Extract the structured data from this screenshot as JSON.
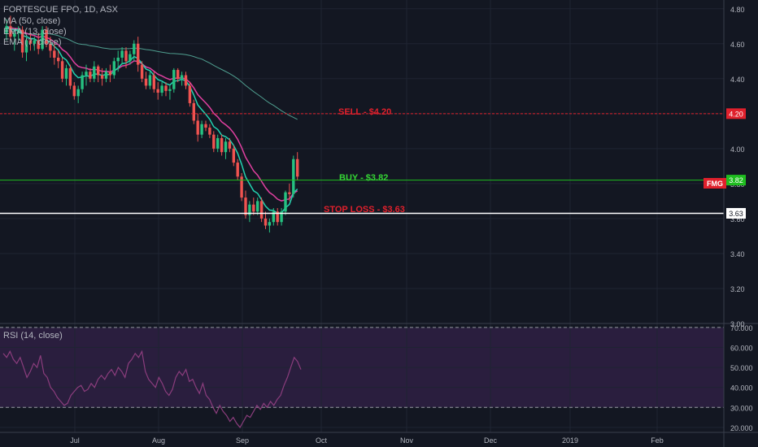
{
  "symbol": {
    "title": "FORTESCUE FPO, 1D, ASX",
    "ticker_badge": "FMG"
  },
  "indicators": {
    "ma50": "MA (50, close)",
    "ema13": "EMA (13, close)",
    "ema7": "EMA (7, close)",
    "rsi": "RSI (14, close)"
  },
  "annotations": {
    "sell": "SELL - $4.20",
    "buy": "BUY - $3.82",
    "stop": "STOP LOSS - $3.63"
  },
  "colors": {
    "background": "#131722",
    "up": "#26c281",
    "down": "#ef5350",
    "sell_line": "#e0202c",
    "buy_line": "#1fbd1f",
    "buy_text": "#35d435",
    "stop_line": "#ffffff",
    "ma50": "#4f9e8f",
    "ema13": "#e040a0",
    "ema7": "#22d3b0",
    "rsi_line": "#8b3d7d",
    "rsi_band": "#2a1e3e"
  },
  "chart_data": [
    {
      "type": "candlestick",
      "title": "FORTESCUE FPO, 1D, ASX",
      "x_ticks": [
        "Jul",
        "Aug",
        "Sep",
        "Oct",
        "Nov",
        "Dec",
        "2019",
        "Feb"
      ],
      "y_ticks": [
        "3.00",
        "3.20",
        "3.40",
        "3.60",
        "3.80",
        "4.00",
        "4.20",
        "4.40",
        "4.60",
        "4.80"
      ],
      "ylim": [
        3.0,
        4.85
      ],
      "levels": [
        {
          "name": "sell",
          "price": 4.2,
          "label": "4.20"
        },
        {
          "name": "buy",
          "price": 3.82,
          "label": "3.82"
        },
        {
          "name": "stop",
          "price": 3.63,
          "label": "3.63"
        }
      ],
      "candles": [
        [
          4.66,
          4.74,
          4.62,
          4.7
        ],
        [
          4.7,
          4.76,
          4.62,
          4.64
        ],
        [
          4.64,
          4.68,
          4.56,
          4.66
        ],
        [
          4.66,
          4.7,
          4.62,
          4.68
        ],
        [
          4.68,
          4.7,
          4.52,
          4.55
        ],
        [
          4.55,
          4.64,
          4.5,
          4.62
        ],
        [
          4.62,
          4.66,
          4.56,
          4.6
        ],
        [
          4.6,
          4.64,
          4.56,
          4.62
        ],
        [
          4.62,
          4.66,
          4.54,
          4.57
        ],
        [
          4.57,
          4.7,
          4.56,
          4.68
        ],
        [
          4.68,
          4.7,
          4.58,
          4.6
        ],
        [
          4.6,
          4.64,
          4.52,
          4.56
        ],
        [
          4.56,
          4.6,
          4.48,
          4.52
        ],
        [
          4.52,
          4.56,
          4.46,
          4.5
        ],
        [
          4.5,
          4.52,
          4.38,
          4.4
        ],
        [
          4.4,
          4.48,
          4.36,
          4.46
        ],
        [
          4.46,
          4.48,
          4.34,
          4.36
        ],
        [
          4.36,
          4.38,
          4.28,
          4.3
        ],
        [
          4.3,
          4.36,
          4.26,
          4.34
        ],
        [
          4.34,
          4.44,
          4.32,
          4.42
        ],
        [
          4.42,
          4.48,
          4.36,
          4.44
        ],
        [
          4.44,
          4.46,
          4.38,
          4.4
        ],
        [
          4.4,
          4.5,
          4.38,
          4.47
        ],
        [
          4.47,
          4.48,
          4.38,
          4.42
        ],
        [
          4.42,
          4.46,
          4.36,
          4.4
        ],
        [
          4.4,
          4.46,
          4.38,
          4.44
        ],
        [
          4.44,
          4.48,
          4.38,
          4.42
        ],
        [
          4.42,
          4.52,
          4.4,
          4.5
        ],
        [
          4.5,
          4.56,
          4.44,
          4.52
        ],
        [
          4.52,
          4.58,
          4.48,
          4.56
        ],
        [
          4.56,
          4.58,
          4.46,
          4.5
        ],
        [
          4.5,
          4.56,
          4.48,
          4.54
        ],
        [
          4.54,
          4.62,
          4.5,
          4.6
        ],
        [
          4.6,
          4.64,
          4.44,
          4.48
        ],
        [
          4.48,
          4.5,
          4.38,
          4.4
        ],
        [
          4.4,
          4.44,
          4.34,
          4.36
        ],
        [
          4.36,
          4.44,
          4.34,
          4.42
        ],
        [
          4.42,
          4.44,
          4.32,
          4.34
        ],
        [
          4.34,
          4.38,
          4.28,
          4.32
        ],
        [
          4.32,
          4.38,
          4.3,
          4.36
        ],
        [
          4.36,
          4.38,
          4.3,
          4.33
        ],
        [
          4.33,
          4.36,
          4.28,
          4.34
        ],
        [
          4.34,
          4.46,
          4.32,
          4.45
        ],
        [
          4.45,
          4.46,
          4.38,
          4.4
        ],
        [
          4.4,
          4.44,
          4.36,
          4.42
        ],
        [
          4.42,
          4.44,
          4.34,
          4.36
        ],
        [
          4.36,
          4.38,
          4.24,
          4.26
        ],
        [
          4.26,
          4.28,
          4.14,
          4.16
        ],
        [
          4.16,
          4.2,
          4.04,
          4.08
        ],
        [
          4.08,
          4.16,
          4.06,
          4.14
        ],
        [
          4.14,
          4.16,
          4.1,
          4.12
        ],
        [
          4.12,
          4.14,
          4.06,
          4.08
        ],
        [
          4.08,
          4.1,
          3.98,
          4.0
        ],
        [
          4.0,
          4.08,
          3.98,
          4.06
        ],
        [
          4.06,
          4.08,
          3.96,
          3.98
        ],
        [
          3.98,
          4.06,
          3.94,
          4.04
        ],
        [
          4.04,
          4.06,
          3.98,
          4.0
        ],
        [
          4.0,
          4.02,
          3.9,
          3.92
        ],
        [
          3.92,
          3.94,
          3.82,
          3.84
        ],
        [
          3.84,
          3.86,
          3.7,
          3.72
        ],
        [
          3.72,
          3.76,
          3.6,
          3.62
        ],
        [
          3.62,
          3.7,
          3.58,
          3.68
        ],
        [
          3.68,
          3.72,
          3.62,
          3.64
        ],
        [
          3.64,
          3.72,
          3.62,
          3.7
        ],
        [
          3.7,
          3.72,
          3.58,
          3.6
        ],
        [
          3.6,
          3.64,
          3.54,
          3.56
        ],
        [
          3.56,
          3.6,
          3.52,
          3.58
        ],
        [
          3.58,
          3.66,
          3.56,
          3.64
        ],
        [
          3.64,
          3.66,
          3.56,
          3.58
        ],
        [
          3.58,
          3.66,
          3.56,
          3.64
        ],
        [
          3.64,
          3.76,
          3.62,
          3.75
        ],
        [
          3.75,
          3.8,
          3.7,
          3.74
        ],
        [
          3.74,
          3.96,
          3.72,
          3.94
        ],
        [
          3.94,
          3.98,
          3.82,
          3.84
        ]
      ]
    },
    {
      "type": "line",
      "title": "RSI (14, close)",
      "y_ticks": [
        "20.000",
        "30.000",
        "40.000",
        "50.000",
        "60.000",
        "70.000"
      ],
      "ylim": [
        17.5,
        72
      ],
      "levels": [
        30,
        70
      ],
      "values": [
        57,
        55,
        58,
        54,
        52,
        55,
        50,
        45,
        48,
        52,
        50,
        56,
        47,
        45,
        40,
        38,
        35,
        33,
        31,
        32,
        36,
        38,
        40,
        41,
        38,
        39,
        42,
        40,
        44,
        46,
        44,
        47,
        49,
        46,
        50,
        48,
        45,
        52,
        54,
        57,
        55,
        58,
        48,
        44,
        42,
        40,
        45,
        42,
        38,
        36,
        39,
        45,
        48,
        46,
        49,
        43,
        44,
        40,
        37,
        42,
        36,
        34,
        30,
        27,
        31,
        28,
        26,
        23,
        25,
        22,
        20,
        23,
        26,
        25,
        28,
        31,
        29,
        32,
        30,
        33,
        31,
        34,
        36,
        41,
        45,
        50,
        55,
        53,
        49
      ]
    }
  ]
}
